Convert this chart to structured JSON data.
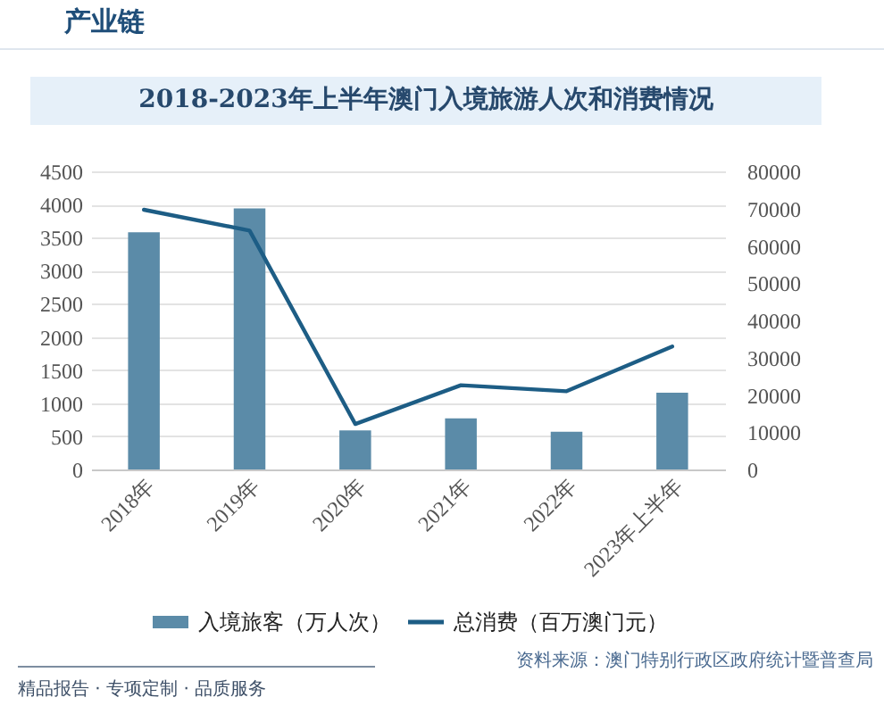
{
  "chart_data": {
    "type": "bar",
    "title": "2018-2023年上半年澳门入境旅游人次和消费情况",
    "categories": [
      "2018年",
      "2019年",
      "2020年",
      "2021年",
      "2022年",
      "2023年上半年"
    ],
    "series": [
      {
        "name": "入境旅客（万人次）",
        "color": "#5b8ba8",
        "values": [
          3580,
          3940,
          590,
          770,
          570,
          1160
        ]
      },
      {
        "name": "总消费（百万澳门元）",
        "type": "line",
        "axis": "y2",
        "color": "#1d5d85",
        "values": [
          69700,
          64100,
          12200,
          22600,
          21000,
          33000
        ]
      }
    ],
    "ylim": [
      0,
      4500
    ],
    "yticks": [
      0,
      500,
      1000,
      1500,
      2000,
      2500,
      3000,
      3500,
      4000,
      4500
    ],
    "y2lim": [
      0,
      80000
    ],
    "y2ticks": [
      0,
      10000,
      20000,
      30000,
      40000,
      50000,
      60000,
      70000,
      80000
    ],
    "grid": "y",
    "legend": "bottom",
    "annotations": [
      "产业链",
      "资料来源：澳门特别行政区政府统计暨普查局",
      "精品报告 · 专项定制 · 品质服务"
    ]
  }
}
